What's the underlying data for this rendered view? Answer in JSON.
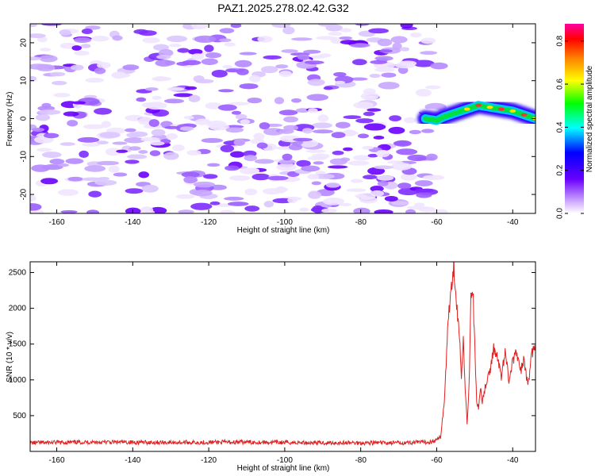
{
  "title": "PAZ1.2025.278.02.42.G32",
  "chart_data": [
    {
      "type": "heatmap",
      "name": "spectrogram",
      "xlabel": "Height of straight line (km)",
      "ylabel": "Frequency (Hz)",
      "xlim": [
        -167,
        -34
      ],
      "ylim": [
        -25,
        25
      ],
      "xticks": [
        -160,
        -140,
        -120,
        -100,
        -80,
        -60,
        -40
      ],
      "yticks": [
        -20,
        -10,
        0,
        10,
        20
      ],
      "noise_region_x": [
        -167,
        -59
      ],
      "signal_track": [
        {
          "x": -63,
          "y": 0.0
        },
        {
          "x": -60,
          "y": -0.5
        },
        {
          "x": -58,
          "y": 0.5
        },
        {
          "x": -55,
          "y": 1.5
        },
        {
          "x": -52,
          "y": 2.5
        },
        {
          "x": -49,
          "y": 3.5
        },
        {
          "x": -46,
          "y": 3.0
        },
        {
          "x": -43,
          "y": 2.5
        },
        {
          "x": -40,
          "y": 2.0
        },
        {
          "x": -37,
          "y": 1.0
        },
        {
          "x": -34,
          "y": 0.0
        }
      ],
      "colorbar": {
        "label": "Normalized spectral amplitude",
        "range": [
          0.0,
          0.88
        ],
        "ticks": [
          "0.0",
          "0.2",
          "0.4",
          "0.6",
          "0.8"
        ]
      }
    },
    {
      "type": "line",
      "name": "snr",
      "xlabel": "Height of straight line (km)",
      "ylabel": "SNR (10 * v/v)",
      "xlim": [
        -167,
        -34
      ],
      "ylim": [
        0,
        2650
      ],
      "xticks": [
        -160,
        -140,
        -120,
        -100,
        -80,
        -60,
        -40
      ],
      "yticks": [
        500,
        1000,
        1500,
        2000,
        2500
      ],
      "color": "#e02020",
      "series": [
        {
          "x": -167,
          "y": 120
        },
        {
          "x": -150,
          "y": 130
        },
        {
          "x": -130,
          "y": 125
        },
        {
          "x": -110,
          "y": 130
        },
        {
          "x": -90,
          "y": 120
        },
        {
          "x": -70,
          "y": 120
        },
        {
          "x": -62,
          "y": 130
        },
        {
          "x": -60,
          "y": 160
        },
        {
          "x": -59,
          "y": 200
        },
        {
          "x": -58,
          "y": 700
        },
        {
          "x": -57,
          "y": 1800
        },
        {
          "x": -56,
          "y": 2400
        },
        {
          "x": -55.5,
          "y": 2650
        },
        {
          "x": -55,
          "y": 2200
        },
        {
          "x": -54,
          "y": 1600
        },
        {
          "x": -53.5,
          "y": 1000
        },
        {
          "x": -53,
          "y": 1550
        },
        {
          "x": -52.5,
          "y": 900
        },
        {
          "x": -52,
          "y": 400
        },
        {
          "x": -51.5,
          "y": 900
        },
        {
          "x": -51,
          "y": 2100
        },
        {
          "x": -50.5,
          "y": 2280
        },
        {
          "x": -50,
          "y": 1500
        },
        {
          "x": -49.5,
          "y": 700
        },
        {
          "x": -49,
          "y": 600
        },
        {
          "x": -48.5,
          "y": 900
        },
        {
          "x": -48,
          "y": 700
        },
        {
          "x": -47,
          "y": 950
        },
        {
          "x": -46,
          "y": 1100
        },
        {
          "x": -45,
          "y": 1450
        },
        {
          "x": -44,
          "y": 1300
        },
        {
          "x": -43,
          "y": 1050
        },
        {
          "x": -42,
          "y": 1400
        },
        {
          "x": -41,
          "y": 1000
        },
        {
          "x": -40,
          "y": 1250
        },
        {
          "x": -39,
          "y": 1400
        },
        {
          "x": -38,
          "y": 1100
        },
        {
          "x": -37,
          "y": 1300
        },
        {
          "x": -36,
          "y": 900
        },
        {
          "x": -35,
          "y": 1350
        },
        {
          "x": -34,
          "y": 1500
        }
      ]
    }
  ]
}
